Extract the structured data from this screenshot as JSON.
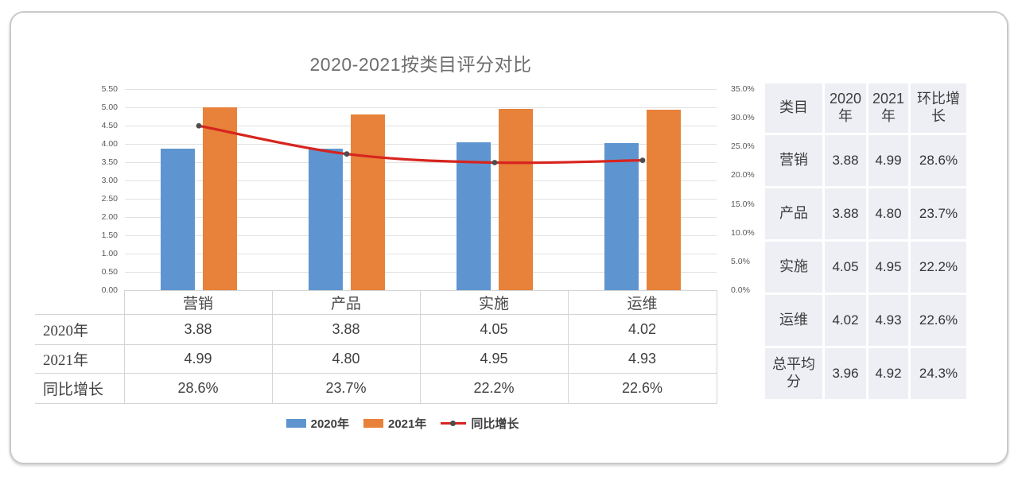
{
  "page": {
    "background": "#ffffff",
    "card_border": "#c9c9c9"
  },
  "chart_data": {
    "type": "combo (bar + line, dual axis) with attached data table",
    "title": "2020-2021按类目评分对比",
    "categories": [
      "营销",
      "产品",
      "实施",
      "运维"
    ],
    "series": [
      {
        "name": "2020年",
        "type": "bar",
        "axis": "left",
        "color": "#5E95D0",
        "values": [
          3.88,
          3.88,
          4.05,
          4.02
        ]
      },
      {
        "name": "2021年",
        "type": "bar",
        "axis": "left",
        "color": "#E8813A",
        "values": [
          4.99,
          4.8,
          4.95,
          4.93
        ]
      },
      {
        "name": "同比增长",
        "type": "line",
        "axis": "right",
        "color": "#D7241E",
        "marker_color": "#4d4d4d",
        "unit": "%",
        "values": [
          28.6,
          23.7,
          22.2,
          22.6
        ]
      }
    ],
    "left_axis": {
      "min": 0,
      "max": 5.5,
      "step": 0.5,
      "tick_labels": [
        "5.50",
        "5.00",
        "4.50",
        "4.00",
        "3.50",
        "3.00",
        "2.50",
        "2.00",
        "1.50",
        "1.00",
        "0.50",
        "0.00"
      ]
    },
    "right_axis": {
      "min": 0,
      "max": 35,
      "step": 5,
      "tick_labels": [
        "35.0%",
        "30.0%",
        "25.0%",
        "20.0%",
        "15.0%",
        "10.0%",
        "5.0%",
        "0.0%"
      ]
    },
    "grid": true,
    "legend_position": "bottom",
    "legend_entries": [
      "2020年",
      "2021年",
      "同比增长"
    ],
    "data_table": {
      "header_row": [
        "营销",
        "产品",
        "实施",
        "运维"
      ],
      "rows": [
        {
          "label": "2020年",
          "values": [
            "3.88",
            "3.88",
            "4.05",
            "4.02"
          ]
        },
        {
          "label": "2021年",
          "values": [
            "4.99",
            "4.80",
            "4.95",
            "4.93"
          ]
        },
        {
          "label": "同比增长",
          "values": [
            "28.6%",
            "23.7%",
            "22.2%",
            "22.6%"
          ]
        }
      ]
    }
  },
  "summary_table": {
    "headers": [
      "类目",
      "2020年",
      "2021年",
      "环比增长"
    ],
    "rows": [
      [
        "营销",
        "3.88",
        "4.99",
        "28.6%"
      ],
      [
        "产品",
        "3.88",
        "4.80",
        "23.7%"
      ],
      [
        "实施",
        "4.05",
        "4.95",
        "22.2%"
      ],
      [
        "运维",
        "4.02",
        "4.93",
        "22.6%"
      ],
      [
        "总平均分",
        "3.96",
        "4.92",
        "24.3%"
      ]
    ]
  }
}
